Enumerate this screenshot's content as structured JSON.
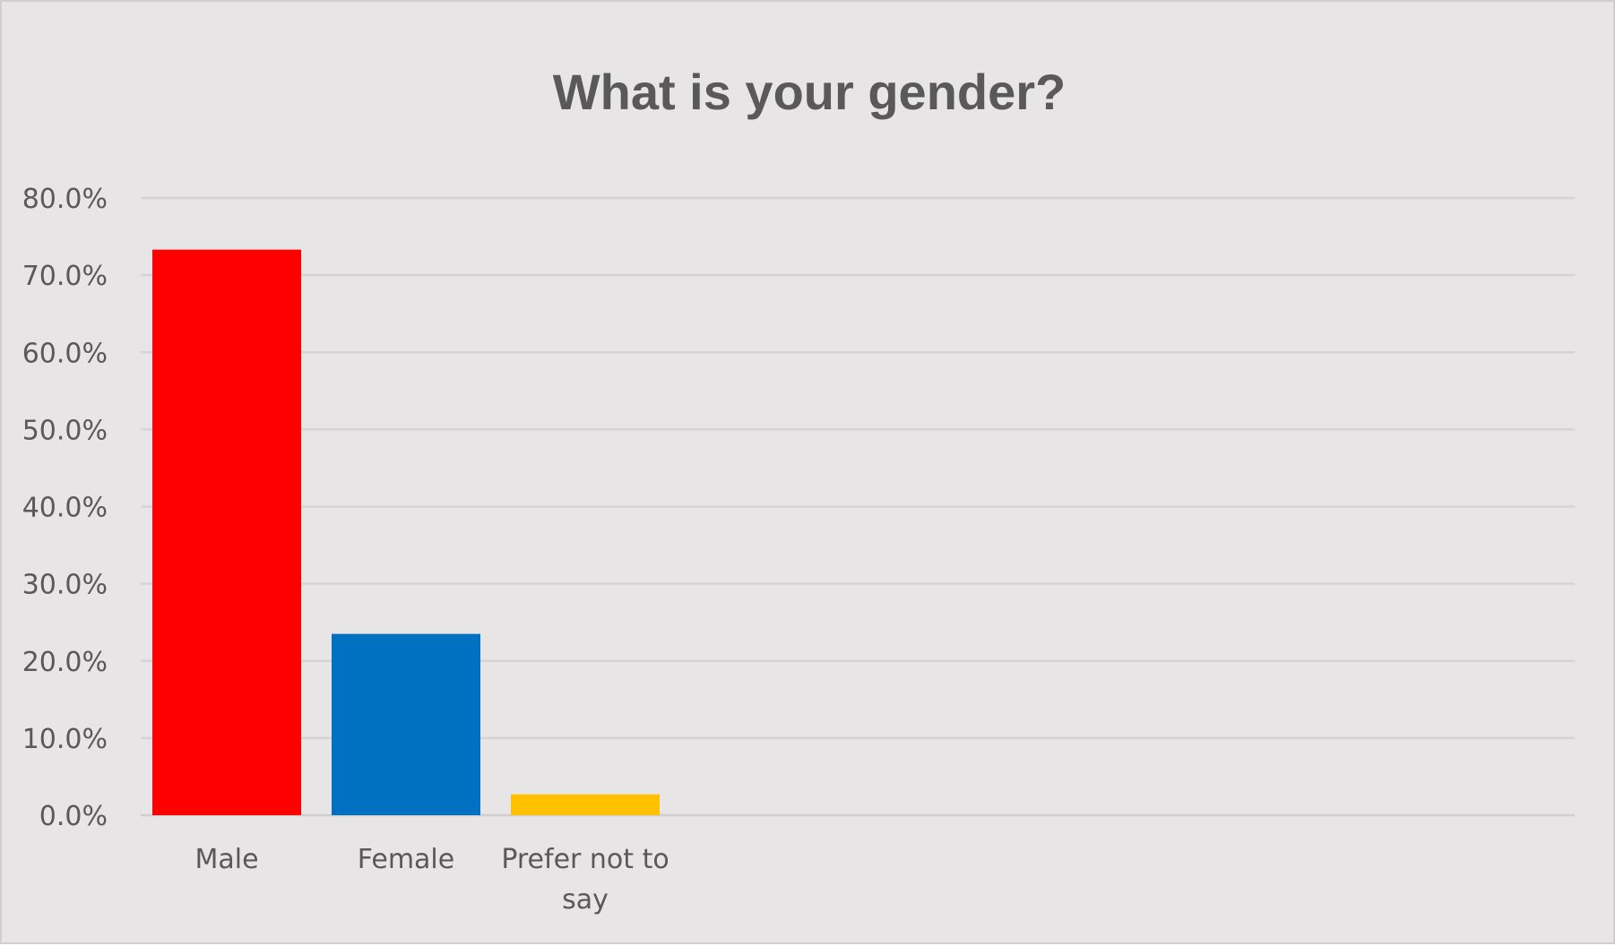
{
  "chart_data": {
    "type": "bar",
    "title": "What is your gender?",
    "xlabel": "",
    "ylabel": "",
    "categories": [
      [
        "Male"
      ],
      [
        "Female"
      ],
      [
        "Prefer not to",
        "say"
      ]
    ],
    "values": [
      73.3,
      23.5,
      2.7
    ],
    "colors": [
      "#ff0000",
      "#0070c0",
      "#ffc000"
    ],
    "ylim": [
      0,
      80
    ],
    "yticks": [
      "0.0%",
      "10.0%",
      "20.0%",
      "30.0%",
      "40.0%",
      "50.0%",
      "60.0%",
      "70.0%",
      "80.0%"
    ],
    "ytick_values": [
      0,
      10,
      20,
      30,
      40,
      50,
      60,
      70,
      80
    ],
    "grid": true,
    "legend": "none"
  }
}
